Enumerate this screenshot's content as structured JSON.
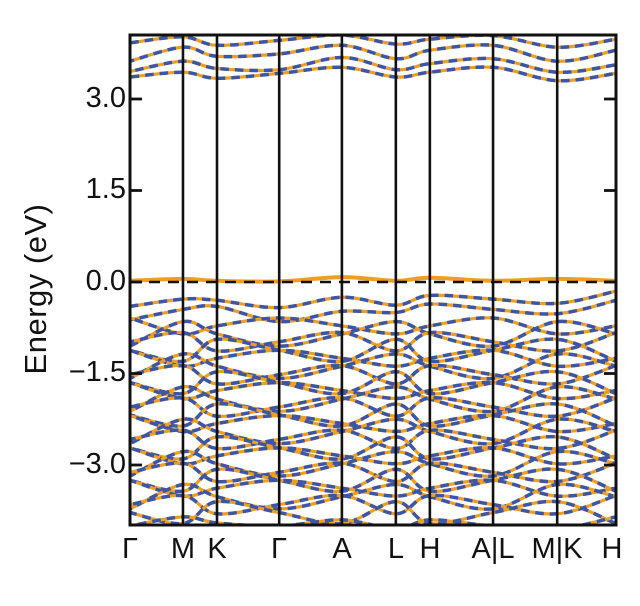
{
  "figure": {
    "ylabel": "Energy (eV)",
    "y_tick_labels": [
      "3.0",
      "1.5",
      "0.0",
      "−1.5",
      "−3.0"
    ],
    "x_labels": [
      "Γ",
      "M",
      "K",
      "Γ",
      "A",
      "L",
      "H",
      "A|L",
      "M|K",
      "H"
    ],
    "colors": {
      "band_solid_orange": "#F09E1F",
      "band_dashed_blue": "#3C55A5",
      "axis_black": "#111111",
      "fermi_line_black": "#111111",
      "background": "#FFFFFF"
    }
  },
  "chart_data": {
    "type": "line",
    "title": "",
    "ylabel": "Energy (eV)",
    "yticks": [
      3.0,
      1.5,
      0.0,
      -1.5,
      -3.0
    ],
    "ylim": [
      -3.98,
      4.05
    ],
    "grid": false,
    "legend": "none",
    "x_point_labels": [
      "Γ",
      "M",
      "K",
      "Γ",
      "A",
      "L",
      "H",
      "A|L",
      "M|K",
      "H"
    ],
    "x_positions": [
      0,
      0.109,
      0.179,
      0.307,
      0.436,
      0.547,
      0.617,
      0.747,
      0.879,
      1.0
    ],
    "fermi_level": 0.0,
    "flat_band": [
      0.02,
      0.05,
      0.02,
      0.01,
      0.08,
      0.02,
      0.07,
      0.02,
      0.05,
      0.02
    ],
    "conduction_bands": [
      [
        3.92,
        4.02,
        3.88,
        3.96,
        4.05,
        3.9,
        3.98,
        4.04,
        3.85,
        3.98
      ],
      [
        3.62,
        3.85,
        3.7,
        3.74,
        3.88,
        3.66,
        3.8,
        3.88,
        3.62,
        3.8
      ],
      [
        3.45,
        3.62,
        3.5,
        3.48,
        3.68,
        3.48,
        3.58,
        3.66,
        3.44,
        3.56
      ],
      [
        3.36,
        3.44,
        3.34,
        3.42,
        3.52,
        3.36,
        3.44,
        3.52,
        3.3,
        3.42
      ]
    ],
    "valence_bands": [
      [
        -0.4,
        -0.28,
        -0.3,
        -0.42,
        -0.25,
        -0.38,
        -0.22,
        -0.28,
        -0.35,
        -0.15
      ],
      [
        -0.62,
        -0.45,
        -0.4,
        -0.65,
        -0.48,
        -0.5,
        -0.36,
        -0.45,
        -0.52,
        -0.3
      ],
      [
        -0.59,
        -0.85,
        -0.72,
        -0.59,
        -0.72,
        -0.85,
        -0.72,
        -0.59,
        -0.85,
        -0.72
      ],
      [
        -1.05,
        -0.65,
        -0.85,
        -1.05,
        -0.85,
        -0.65,
        -0.85,
        -1.05,
        -0.65,
        -0.85
      ],
      [
        -0.98,
        -0.83,
        -1.13,
        -0.98,
        -0.83,
        -1.13,
        -0.83,
        -0.98,
        -1.13,
        -0.83
      ],
      [
        -1.12,
        -1.3,
        -0.94,
        -1.12,
        -1.3,
        -0.94,
        -1.3,
        -1.12,
        -0.94,
        -1.3
      ],
      [
        -1.12,
        -1.38,
        -1.25,
        -1.12,
        -1.25,
        -1.38,
        -1.25,
        -1.12,
        -1.38,
        -1.25
      ],
      [
        -1.58,
        -1.18,
        -1.38,
        -1.58,
        -1.38,
        -1.18,
        -1.38,
        -1.58,
        -1.18,
        -1.38
      ],
      [
        -1.52,
        -1.37,
        -1.67,
        -1.52,
        -1.37,
        -1.67,
        -1.37,
        -1.52,
        -1.67,
        -1.37
      ],
      [
        -1.65,
        -1.83,
        -1.47,
        -1.65,
        -1.83,
        -1.47,
        -1.83,
        -1.65,
        -1.47,
        -1.83
      ],
      [
        -1.65,
        -1.91,
        -1.78,
        -1.65,
        -1.78,
        -1.91,
        -1.78,
        -1.65,
        -1.91,
        -1.78
      ],
      [
        -2.12,
        -1.72,
        -1.92,
        -2.12,
        -1.92,
        -1.72,
        -1.92,
        -2.12,
        -1.72,
        -1.92
      ],
      [
        -2.05,
        -1.9,
        -2.2,
        -2.05,
        -1.9,
        -2.2,
        -1.9,
        -2.05,
        -2.2,
        -1.9
      ],
      [
        -2.18,
        -2.36,
        -2.0,
        -2.18,
        -2.36,
        -2.0,
        -2.36,
        -2.18,
        -2.0,
        -2.36
      ],
      [
        -2.19,
        -2.45,
        -2.32,
        -2.19,
        -2.32,
        -2.45,
        -2.32,
        -2.19,
        -2.45,
        -2.32
      ],
      [
        -2.65,
        -2.25,
        -2.45,
        -2.65,
        -2.45,
        -2.25,
        -2.45,
        -2.65,
        -2.25,
        -2.45
      ],
      [
        -2.58,
        -2.43,
        -2.73,
        -2.58,
        -2.43,
        -2.73,
        -2.43,
        -2.58,
        -2.73,
        -2.43
      ],
      [
        -2.72,
        -2.9,
        -2.54,
        -2.72,
        -2.9,
        -2.54,
        -2.9,
        -2.72,
        -2.54,
        -2.9
      ],
      [
        -2.72,
        -2.98,
        -2.85,
        -2.72,
        -2.85,
        -2.98,
        -2.85,
        -2.72,
        -2.98,
        -2.85
      ],
      [
        -3.18,
        -2.78,
        -2.98,
        -3.18,
        -2.98,
        -2.78,
        -2.98,
        -3.18,
        -2.78,
        -2.98
      ],
      [
        -3.12,
        -2.97,
        -3.27,
        -3.12,
        -2.97,
        -3.27,
        -2.97,
        -3.12,
        -3.27,
        -2.97
      ],
      [
        -3.25,
        -3.43,
        -3.07,
        -3.25,
        -3.43,
        -3.07,
        -3.43,
        -3.25,
        -3.07,
        -3.43
      ],
      [
        -3.25,
        -3.51,
        -3.38,
        -3.25,
        -3.38,
        -3.51,
        -3.38,
        -3.25,
        -3.51,
        -3.38
      ],
      [
        -3.72,
        -3.32,
        -3.52,
        -3.72,
        -3.52,
        -3.32,
        -3.52,
        -3.72,
        -3.32,
        -3.52
      ],
      [
        -3.65,
        -3.5,
        -3.8,
        -3.65,
        -3.5,
        -3.8,
        -3.5,
        -3.65,
        -3.8,
        -3.5
      ],
      [
        -3.78,
        -3.96,
        -3.6,
        -3.78,
        -3.96,
        -3.6,
        -3.96,
        -3.78,
        -3.6,
        -3.96
      ],
      [
        -4.0,
        -3.85,
        -3.95,
        -4.0,
        -3.9,
        -4.05,
        -3.9,
        -4.0,
        -4.05,
        -3.85
      ]
    ]
  }
}
